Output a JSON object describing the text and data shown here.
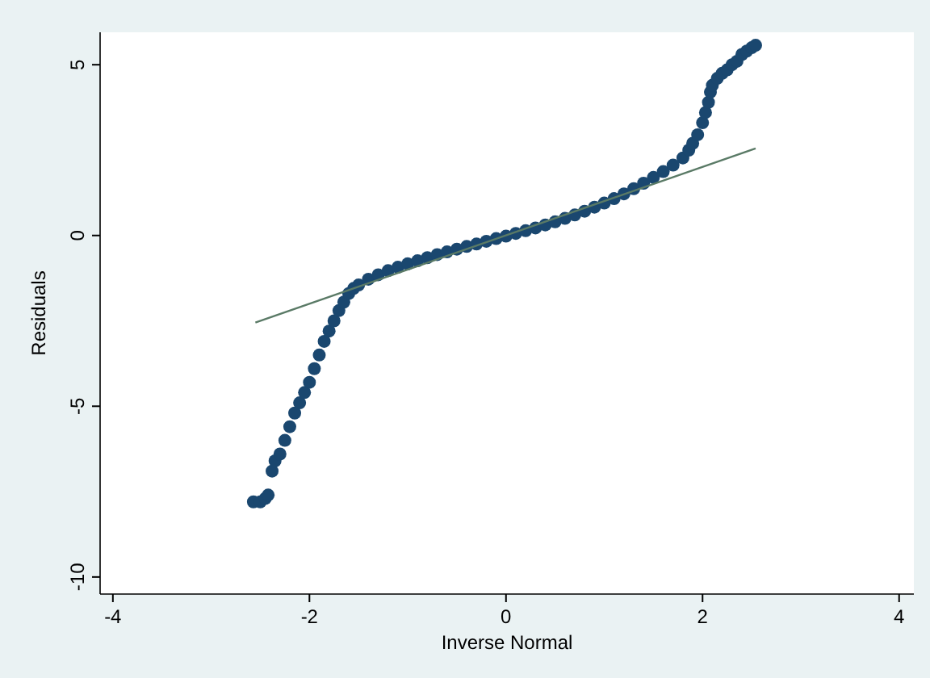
{
  "chart_data": {
    "type": "scatter",
    "xlabel": "Inverse Normal",
    "ylabel": "Residuals",
    "xlim": [
      -4.13,
      4.15
    ],
    "ylim": [
      -10.5,
      5.95
    ],
    "xticks": [
      -4,
      -2,
      0,
      2,
      4
    ],
    "yticks": [
      -10,
      -5,
      0,
      5
    ],
    "grid": false,
    "legend": false,
    "marker": "circle",
    "series": [
      {
        "color": "#1a476f",
        "x": [
          -2.57,
          -2.5,
          -2.45,
          -2.42,
          -2.38,
          -2.35,
          -2.3,
          -2.25,
          -2.2,
          -2.15,
          -2.1,
          -2.05,
          -2.0,
          -1.95,
          -1.9,
          -1.85,
          -1.8,
          -1.75,
          -1.7,
          -1.65,
          -1.6,
          -1.55,
          -1.5,
          -1.4,
          -1.3,
          -1.2,
          -1.1,
          -1.0,
          -0.9,
          -0.8,
          -0.7,
          -0.6,
          -0.5,
          -0.4,
          -0.3,
          -0.2,
          -0.1,
          0,
          0.1,
          0.2,
          0.3,
          0.4,
          0.5,
          0.6,
          0.7,
          0.8,
          0.9,
          1.0,
          1.1,
          1.2,
          1.3,
          1.4,
          1.5,
          1.6,
          1.7,
          1.8,
          1.86,
          1.9,
          1.95,
          2.0,
          2.03,
          2.06,
          2.08,
          2.1,
          2.15,
          2.2,
          2.25,
          2.3,
          2.35,
          2.4,
          2.45,
          2.5,
          2.54
        ],
        "values": [
          -7.8,
          -7.8,
          -7.7,
          -7.6,
          -6.9,
          -6.6,
          -6.4,
          -6.0,
          -5.6,
          -5.2,
          -4.9,
          -4.6,
          -4.3,
          -3.9,
          -3.5,
          -3.1,
          -2.8,
          -2.5,
          -2.2,
          -1.95,
          -1.7,
          -1.55,
          -1.45,
          -1.28,
          -1.15,
          -1.03,
          -0.93,
          -0.83,
          -0.74,
          -0.65,
          -0.56,
          -0.48,
          -0.4,
          -0.32,
          -0.25,
          -0.17,
          -0.09,
          -0.02,
          0.06,
          0.14,
          0.22,
          0.31,
          0.4,
          0.5,
          0.6,
          0.71,
          0.83,
          0.95,
          1.08,
          1.22,
          1.37,
          1.53,
          1.7,
          1.87,
          2.06,
          2.27,
          2.5,
          2.7,
          2.95,
          3.3,
          3.6,
          3.9,
          4.2,
          4.4,
          4.6,
          4.75,
          4.85,
          5.0,
          5.1,
          5.3,
          5.4,
          5.5,
          5.57
        ]
      },
      {
        "type": "line",
        "color": "#5a7a66",
        "marker": "none",
        "x": [
          -2.55,
          2.54
        ],
        "values": [
          -2.55,
          2.55
        ]
      }
    ]
  }
}
